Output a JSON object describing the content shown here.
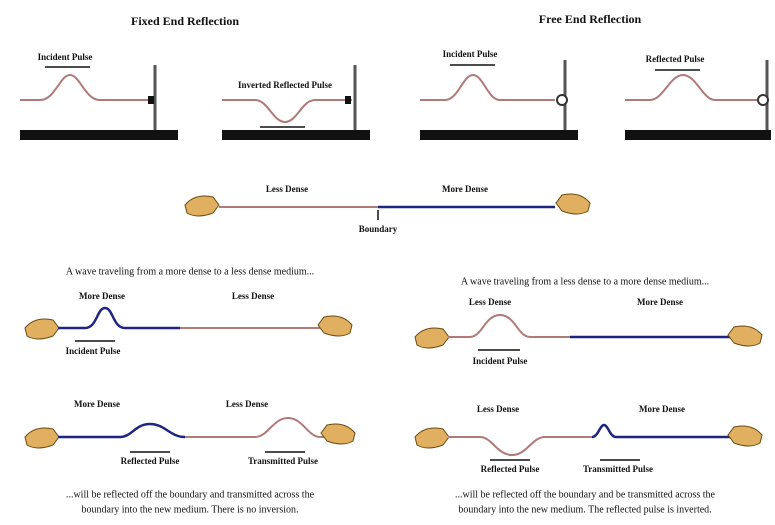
{
  "fixed_end": {
    "title": "Fixed End Reflection",
    "incident_label": "Incident Pulse",
    "reflected_label": "Inverted Reflected Pulse"
  },
  "free_end": {
    "title": "Free End Reflection",
    "incident_label": "Incident Pulse",
    "reflected_label": "Reflected Pulse"
  },
  "boundary_demo": {
    "left_label": "Less Dense",
    "right_label": "More Dense",
    "boundary_label": "Boundary"
  },
  "more_to_less": {
    "intro": "A wave traveling from a more dense to a less dense medium...",
    "before": {
      "left_label": "More Dense",
      "right_label": "Less Dense",
      "pulse_label": "Incident Pulse"
    },
    "after": {
      "left_label": "More Dense",
      "right_label": "Less Dense",
      "reflected_label": "Reflected Pulse",
      "transmitted_label": "Transmitted Pulse"
    },
    "conclusion": [
      "...will be reflected off the boundary and transmitted across the",
      "boundary into the new medium. There is no inversion."
    ]
  },
  "less_to_more": {
    "intro": "A wave traveling from a less dense to a more dense medium...",
    "before": {
      "left_label": "Less Dense",
      "right_label": "More Dense",
      "pulse_label": "Incident Pulse"
    },
    "after": {
      "left_label": "Less Dense",
      "right_label": "More Dense",
      "reflected_label": "Reflected Pulse",
      "transmitted_label": "Transmitted Pulse"
    },
    "conclusion": [
      "...will be reflected off the boundary and be transmitted across the",
      "boundary into the new medium.  The reflected pulse is inverted."
    ]
  }
}
